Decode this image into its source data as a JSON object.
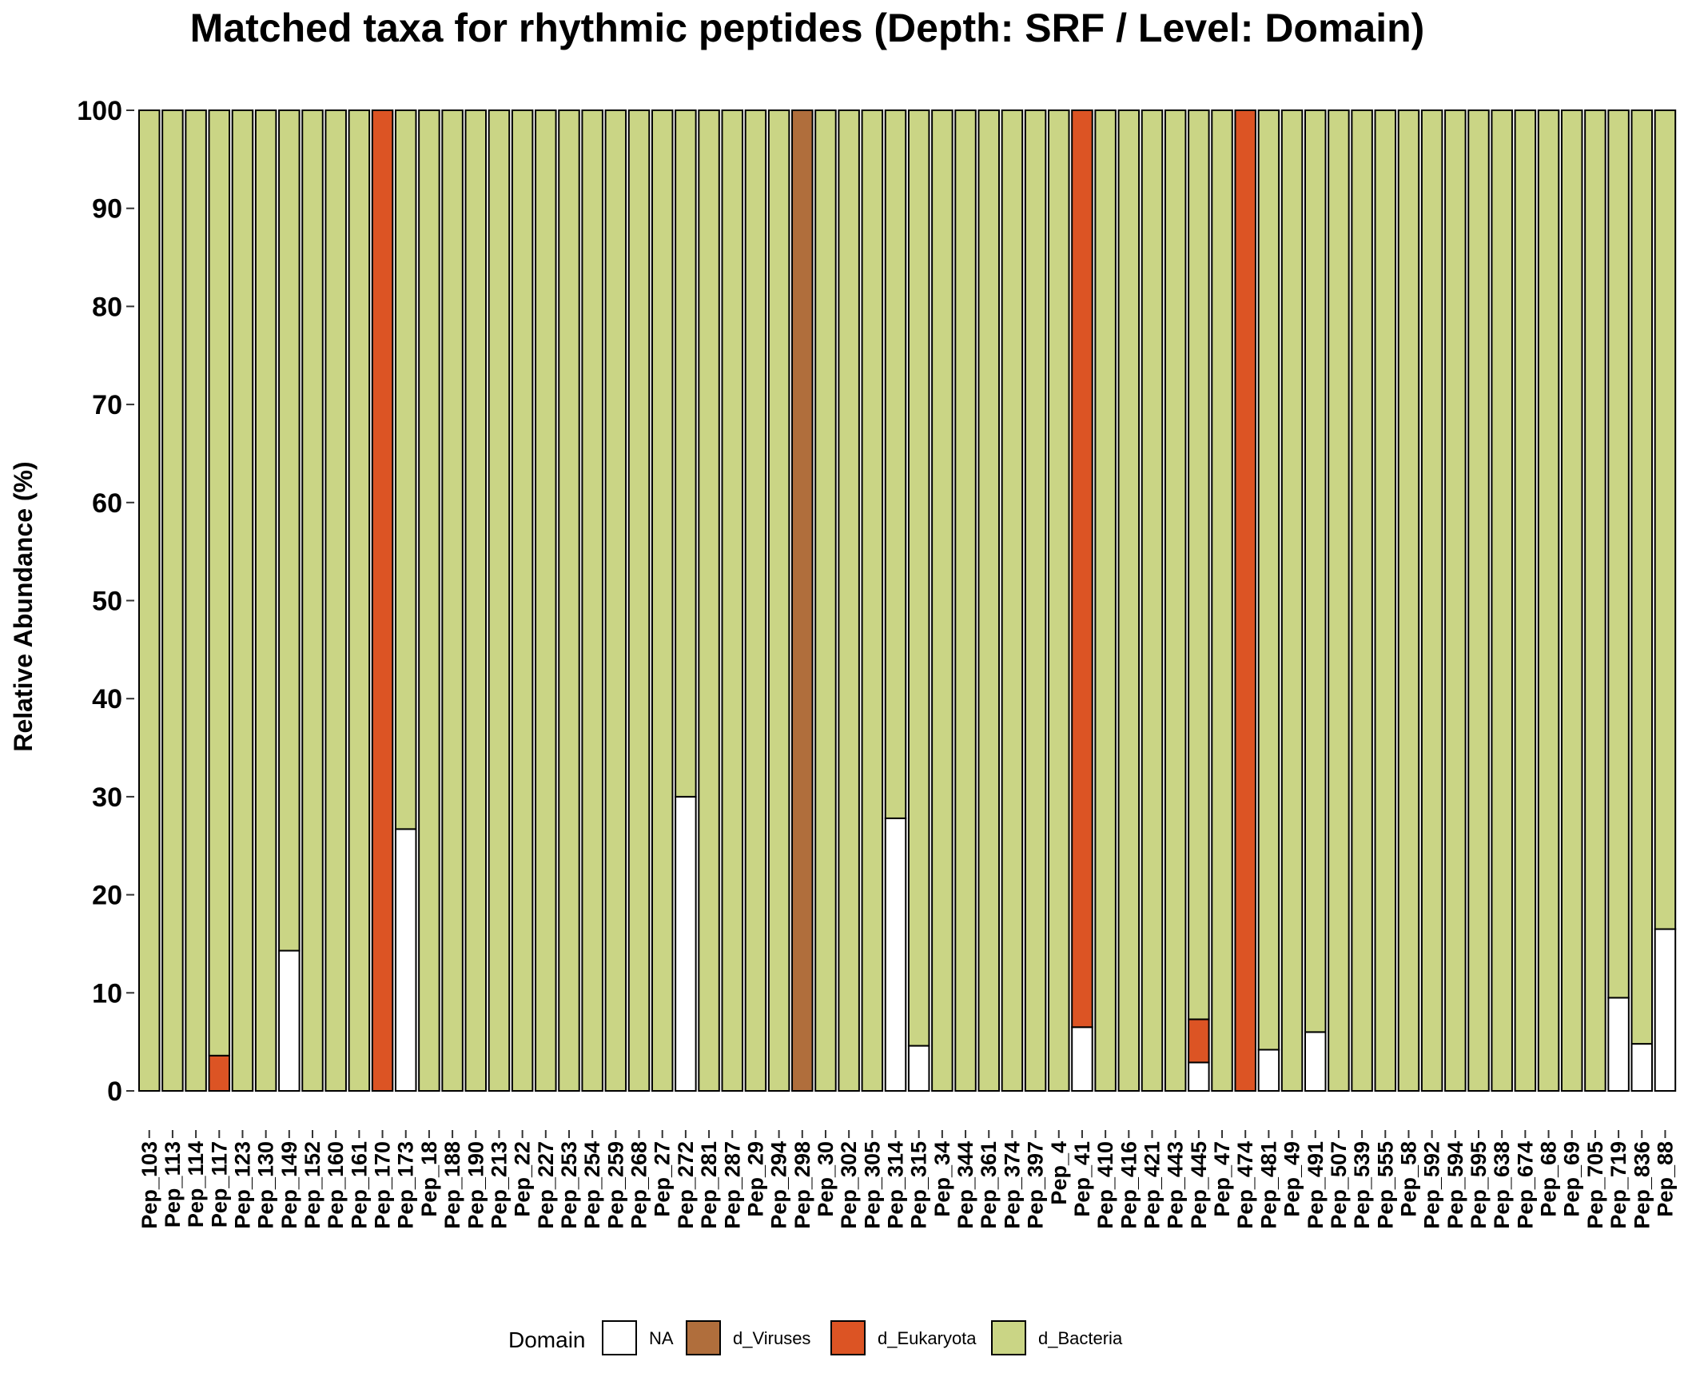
{
  "chart_data": {
    "type": "bar",
    "stacked": true,
    "title": "Matched taxa for rhythmic peptides (Depth: SRF / Level: Domain)",
    "xlabel": "",
    "ylabel": "Relative Abundance (%)",
    "ylim": [
      0,
      100
    ],
    "yticks": [
      0,
      10,
      20,
      30,
      40,
      50,
      60,
      70,
      80,
      90,
      100
    ],
    "grid": false,
    "legend": {
      "title": "Domain",
      "placement": "bottom"
    },
    "colors": {
      "NA": "#ffffff",
      "d_Viruses": "#b06e3c",
      "d_Eukaryota": "#dc5424",
      "d_Bacteria": "#cad585"
    },
    "categories": [
      "Pep_103",
      "Pep_113",
      "Pep_114",
      "Pep_117",
      "Pep_123",
      "Pep_130",
      "Pep_149",
      "Pep_152",
      "Pep_160",
      "Pep_161",
      "Pep_170",
      "Pep_173",
      "Pep_18",
      "Pep_188",
      "Pep_190",
      "Pep_213",
      "Pep_22",
      "Pep_227",
      "Pep_253",
      "Pep_254",
      "Pep_259",
      "Pep_268",
      "Pep_27",
      "Pep_272",
      "Pep_281",
      "Pep_287",
      "Pep_29",
      "Pep_294",
      "Pep_298",
      "Pep_30",
      "Pep_302",
      "Pep_305",
      "Pep_314",
      "Pep_315",
      "Pep_34",
      "Pep_344",
      "Pep_361",
      "Pep_374",
      "Pep_397",
      "Pep_4",
      "Pep_41",
      "Pep_410",
      "Pep_416",
      "Pep_421",
      "Pep_443",
      "Pep_445",
      "Pep_47",
      "Pep_474",
      "Pep_481",
      "Pep_49",
      "Pep_491",
      "Pep_507",
      "Pep_539",
      "Pep_555",
      "Pep_58",
      "Pep_592",
      "Pep_594",
      "Pep_595",
      "Pep_638",
      "Pep_674",
      "Pep_68",
      "Pep_69",
      "Pep_705",
      "Pep_719",
      "Pep_836",
      "Pep_88"
    ],
    "series": [
      {
        "name": "NA",
        "values": [
          0,
          0,
          0,
          0,
          0,
          0,
          14.3,
          0,
          0,
          0,
          0,
          26.7,
          0,
          0,
          0,
          0,
          0,
          0,
          0,
          0,
          0,
          0,
          0,
          30,
          0,
          0,
          0,
          0,
          0,
          0,
          0,
          0,
          27.8,
          4.6,
          0,
          0,
          0,
          0,
          0,
          0,
          6.5,
          0,
          0,
          0,
          0,
          2.9,
          0,
          0,
          4.2,
          0,
          6,
          0,
          0,
          0,
          0,
          0,
          0,
          0,
          0,
          0,
          0,
          0,
          0,
          9.5,
          4.8,
          16.5
        ]
      },
      {
        "name": "d_Viruses",
        "values": [
          0,
          0,
          0,
          0,
          0,
          0,
          0,
          0,
          0,
          0,
          0,
          0,
          0,
          0,
          0,
          0,
          0,
          0,
          0,
          0,
          0,
          0,
          0,
          0,
          0,
          0,
          0,
          0,
          100,
          0,
          0,
          0,
          0,
          0,
          0,
          0,
          0,
          0,
          0,
          0,
          0,
          0,
          0,
          0,
          0,
          0,
          0,
          0,
          0,
          0,
          0,
          0,
          0,
          0,
          0,
          0,
          0,
          0,
          0,
          0,
          0,
          0,
          0,
          0,
          0,
          0
        ]
      },
      {
        "name": "d_Eukaryota",
        "values": [
          0,
          0,
          0,
          3.6,
          0,
          0,
          0,
          0,
          0,
          0,
          100,
          0,
          0,
          0,
          0,
          0,
          0,
          0,
          0,
          0,
          0,
          0,
          0,
          0,
          0,
          0,
          0,
          0,
          0,
          0,
          0,
          0,
          0,
          0,
          0,
          0,
          0,
          0,
          0,
          0,
          93.5,
          0,
          0,
          0,
          0,
          4.4,
          0,
          100,
          0,
          0,
          0,
          0,
          0,
          0,
          0,
          0,
          0,
          0,
          0,
          0,
          0,
          0,
          0,
          0,
          0,
          0
        ]
      },
      {
        "name": "d_Bacteria",
        "values": [
          100,
          100,
          100,
          96.4,
          100,
          100,
          85.7,
          100,
          100,
          100,
          0,
          73.3,
          100,
          100,
          100,
          100,
          100,
          100,
          100,
          100,
          100,
          100,
          100,
          70,
          100,
          100,
          100,
          100,
          0,
          100,
          100,
          100,
          72.2,
          95.4,
          100,
          100,
          100,
          100,
          100,
          100,
          0,
          100,
          100,
          100,
          100,
          92.7,
          100,
          0,
          95.8,
          100,
          94,
          100,
          100,
          100,
          100,
          100,
          100,
          100,
          100,
          100,
          100,
          100,
          100,
          90.5,
          95.2,
          83.5
        ]
      }
    ]
  }
}
